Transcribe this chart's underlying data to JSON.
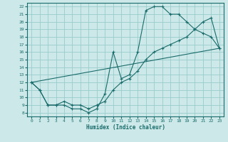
{
  "xlabel": "Humidex (Indice chaleur)",
  "bg_color": "#cce8e8",
  "grid_color": "#99cccc",
  "line_color": "#1a6b6b",
  "xlim": [
    -0.5,
    23.5
  ],
  "ylim": [
    7.5,
    22.5
  ],
  "xticks": [
    0,
    1,
    2,
    3,
    4,
    5,
    6,
    7,
    8,
    9,
    10,
    11,
    12,
    13,
    14,
    15,
    16,
    17,
    18,
    19,
    20,
    21,
    22,
    23
  ],
  "yticks": [
    8,
    9,
    10,
    11,
    12,
    13,
    14,
    15,
    16,
    17,
    18,
    19,
    20,
    21,
    22
  ],
  "line1_x": [
    0,
    1,
    2,
    3,
    4,
    5,
    6,
    7,
    8,
    9,
    10,
    11,
    12,
    13,
    14,
    15,
    16,
    17,
    18,
    19,
    20,
    21,
    22,
    23
  ],
  "line1_y": [
    12,
    11,
    9,
    9,
    9,
    8.5,
    8.5,
    8,
    8.5,
    10.5,
    16,
    12.5,
    13,
    16,
    21.5,
    22,
    22,
    21,
    21,
    20,
    19,
    18.5,
    18,
    16.5
  ],
  "line2_x": [
    0,
    1,
    2,
    3,
    4,
    5,
    6,
    7,
    8,
    9,
    10,
    11,
    12,
    13,
    14,
    15,
    16,
    17,
    18,
    19,
    20,
    21,
    22,
    23
  ],
  "line2_y": [
    12,
    11,
    9,
    9,
    9.5,
    9,
    9,
    8.5,
    9,
    9.5,
    11,
    12,
    12.5,
    13.5,
    15,
    16,
    16.5,
    17,
    17.5,
    18,
    19,
    20,
    20.5,
    16.5
  ],
  "line3_x": [
    0,
    23
  ],
  "line3_y": [
    12,
    16.5
  ]
}
